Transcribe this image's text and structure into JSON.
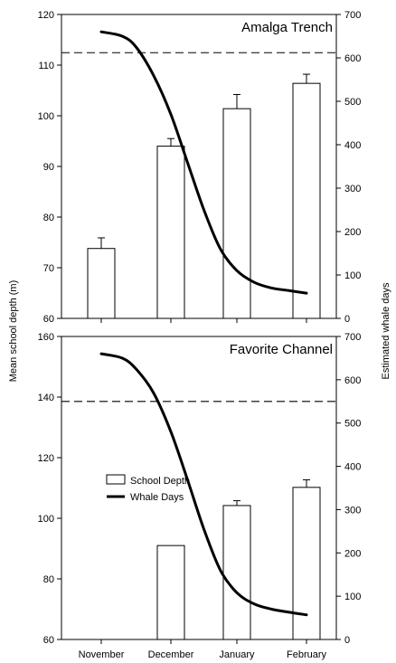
{
  "chart_data": {
    "type": "bar",
    "shared_ylabel_left": "Mean school depth (m)",
    "shared_ylabel_right": "Estimated whale days",
    "categories": [
      "November",
      "December",
      "January",
      "February"
    ],
    "legend": [
      {
        "label": "School Depth",
        "symbol": "open-bar"
      },
      {
        "label": "Whale Days",
        "symbol": "thick-line"
      }
    ],
    "panels": [
      {
        "title": "Amalga Trench",
        "left_axis": {
          "min": 60,
          "max": 120,
          "ticks": [
            60,
            70,
            80,
            90,
            100,
            110,
            120
          ]
        },
        "right_axis": {
          "min": 0,
          "max": 700,
          "ticks": [
            0,
            100,
            200,
            300,
            400,
            500,
            600,
            700
          ]
        },
        "school_depth": [
          {
            "category": "November",
            "mean": 73.8,
            "error": 2.1
          },
          {
            "category": "December",
            "mean": 94.0,
            "error": 1.5
          },
          {
            "category": "January",
            "mean": 101.4,
            "error": 2.8
          },
          {
            "category": "February",
            "mean": 106.4,
            "error": 1.8
          }
        ],
        "whale_days_curve": [
          [
            0.0,
            660
          ],
          [
            0.3,
            650
          ],
          [
            0.5,
            625
          ],
          [
            0.75,
            560
          ],
          [
            1.0,
            470
          ],
          [
            1.25,
            360
          ],
          [
            1.5,
            250
          ],
          [
            1.75,
            160
          ],
          [
            2.0,
            110
          ],
          [
            2.25,
            83
          ],
          [
            2.5,
            70
          ],
          [
            2.75,
            64
          ],
          [
            3.0,
            58
          ]
        ],
        "dashed_reference": 612
      },
      {
        "title": "Favorite Channel",
        "left_axis": {
          "min": 60,
          "max": 160,
          "ticks": [
            60,
            80,
            100,
            120,
            140,
            160
          ]
        },
        "right_axis": {
          "min": 0,
          "max": 700,
          "ticks": [
            0,
            100,
            200,
            300,
            400,
            500,
            600,
            700
          ]
        },
        "school_depth": [
          {
            "category": "November",
            "mean": null,
            "error": null
          },
          {
            "category": "December",
            "mean": 91.0,
            "error": 0
          },
          {
            "category": "January",
            "mean": 104.2,
            "error": 1.6
          },
          {
            "category": "February",
            "mean": 110.2,
            "error": 2.5
          }
        ],
        "whale_days_curve": [
          [
            0.0,
            660
          ],
          [
            0.3,
            650
          ],
          [
            0.5,
            625
          ],
          [
            0.75,
            570
          ],
          [
            1.0,
            480
          ],
          [
            1.25,
            370
          ],
          [
            1.5,
            255
          ],
          [
            1.75,
            160
          ],
          [
            2.0,
            108
          ],
          [
            2.25,
            82
          ],
          [
            2.5,
            70
          ],
          [
            2.75,
            63
          ],
          [
            3.0,
            57
          ]
        ],
        "dashed_reference": 550
      }
    ]
  }
}
